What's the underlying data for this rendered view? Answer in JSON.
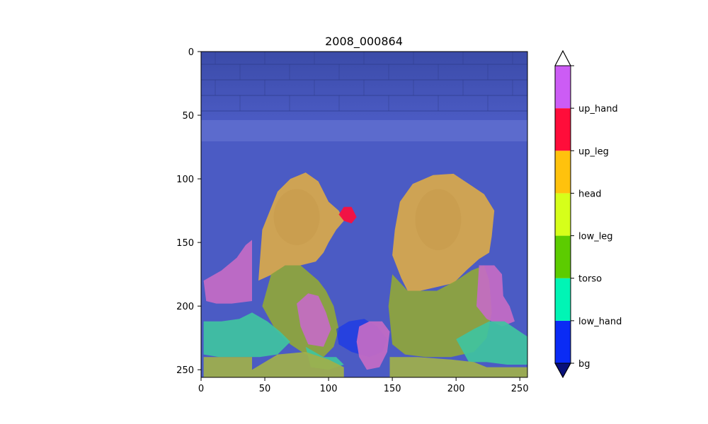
{
  "chart_data": {
    "type": "heatmap",
    "title": "2008_000864",
    "xlabel": "",
    "ylabel": "",
    "xlim": [
      0,
      256
    ],
    "ylim": [
      256,
      0
    ],
    "x_ticks": [
      0,
      50,
      100,
      150,
      200,
      250
    ],
    "y_ticks": [
      0,
      50,
      100,
      150,
      200,
      250
    ],
    "grid": false,
    "colorbar": {
      "labels": [
        "bg",
        "low_hand",
        "torso",
        "low_leg",
        "head",
        "up_leg",
        "up_hand"
      ],
      "colors": [
        "#0a2bf5",
        "#00f5b5",
        "#5ccc00",
        "#d6ff1a",
        "#ffc20d",
        "#ff0d3a",
        "#cc5cf5"
      ],
      "under_color": "#08107a",
      "over_color": "#ffffff",
      "extend": "both"
    },
    "image_colors": {
      "background": "#4b5bc4",
      "wall": "#3b4ba8",
      "tub_rim": "#6472d2",
      "head": "#d9a94a",
      "skin": "#c79a4a",
      "torso": "#8fa63a",
      "low_hand": "#3fc3a0",
      "up_hand": "#c46bc4",
      "tub_front": "#9fb04a"
    },
    "segments": [
      {
        "label": "head",
        "polygon": [
          [
            45,
            180
          ],
          [
            48,
            140
          ],
          [
            60,
            110
          ],
          [
            70,
            100
          ],
          [
            82,
            95
          ],
          [
            92,
            102
          ],
          [
            100,
            118
          ],
          [
            108,
            125
          ],
          [
            112,
            133
          ],
          [
            106,
            140
          ],
          [
            100,
            150
          ],
          [
            96,
            158
          ],
          [
            90,
            165
          ],
          [
            78,
            168
          ],
          [
            66,
            168
          ],
          [
            56,
            175
          ]
        ]
      },
      {
        "label": "head",
        "polygon": [
          [
            152,
            140
          ],
          [
            156,
            118
          ],
          [
            166,
            104
          ],
          [
            182,
            97
          ],
          [
            198,
            96
          ],
          [
            210,
            104
          ],
          [
            222,
            112
          ],
          [
            230,
            125
          ],
          [
            228,
            145
          ],
          [
            226,
            158
          ],
          [
            218,
            163
          ],
          [
            208,
            172
          ],
          [
            198,
            182
          ],
          [
            185,
            185
          ],
          [
            172,
            188
          ],
          [
            162,
            188
          ],
          [
            157,
            178
          ],
          [
            150,
            160
          ]
        ]
      },
      {
        "label": "torso",
        "polygon": [
          [
            55,
            175
          ],
          [
            66,
            168
          ],
          [
            78,
            168
          ],
          [
            92,
            180
          ],
          [
            98,
            188
          ],
          [
            104,
            200
          ],
          [
            108,
            218
          ],
          [
            104,
            232
          ],
          [
            96,
            240
          ],
          [
            82,
            238
          ],
          [
            70,
            230
          ],
          [
            58,
            218
          ],
          [
            48,
            200
          ]
        ]
      },
      {
        "label": "torso",
        "polygon": [
          [
            150,
            175
          ],
          [
            162,
            188
          ],
          [
            185,
            188
          ],
          [
            200,
            180
          ],
          [
            212,
            172
          ],
          [
            222,
            168
          ],
          [
            226,
            180
          ],
          [
            228,
            205
          ],
          [
            224,
            225
          ],
          [
            214,
            236
          ],
          [
            196,
            240
          ],
          [
            176,
            240
          ],
          [
            160,
            238
          ],
          [
            150,
            230
          ],
          [
            147,
            200
          ]
        ]
      },
      {
        "label": "up_hand",
        "polygon": [
          [
            2,
            180
          ],
          [
            16,
            172
          ],
          [
            28,
            162
          ],
          [
            35,
            152
          ],
          [
            40,
            148
          ],
          [
            40,
            196
          ],
          [
            24,
            198
          ],
          [
            12,
            198
          ],
          [
            4,
            196
          ]
        ]
      },
      {
        "label": "up_hand",
        "polygon": [
          [
            218,
            168
          ],
          [
            230,
            168
          ],
          [
            236,
            175
          ],
          [
            237,
            192
          ],
          [
            242,
            200
          ],
          [
            246,
            212
          ],
          [
            236,
            216
          ],
          [
            224,
            210
          ],
          [
            216,
            200
          ]
        ]
      },
      {
        "label": "up_hand",
        "polygon": [
          [
            75,
            198
          ],
          [
            84,
            190
          ],
          [
            92,
            192
          ],
          [
            98,
            205
          ],
          [
            102,
            218
          ],
          [
            96,
            232
          ],
          [
            84,
            230
          ],
          [
            78,
            216
          ]
        ]
      },
      {
        "label": "low_hand",
        "polygon": [
          [
            2,
            212
          ],
          [
            16,
            212
          ],
          [
            30,
            210
          ],
          [
            40,
            205
          ],
          [
            52,
            212
          ],
          [
            62,
            220
          ],
          [
            70,
            228
          ],
          [
            60,
            238
          ],
          [
            46,
            240
          ],
          [
            30,
            240
          ],
          [
            14,
            240
          ],
          [
            2,
            238
          ]
        ]
      },
      {
        "label": "low_hand",
        "polygon": [
          [
            82,
            232
          ],
          [
            96,
            240
          ],
          [
            106,
            240
          ],
          [
            112,
            246
          ],
          [
            100,
            250
          ],
          [
            86,
            248
          ]
        ]
      },
      {
        "label": "low_hand",
        "polygon": [
          [
            200,
            226
          ],
          [
            214,
            218
          ],
          [
            226,
            212
          ],
          [
            238,
            212
          ],
          [
            256,
            224
          ],
          [
            256,
            246
          ],
          [
            240,
            246
          ],
          [
            224,
            244
          ],
          [
            210,
            244
          ]
        ]
      },
      {
        "label": "bg",
        "polygon": [
          [
            106,
            218
          ],
          [
            116,
            212
          ],
          [
            128,
            210
          ],
          [
            138,
            216
          ],
          [
            146,
            226
          ],
          [
            142,
            236
          ],
          [
            132,
            240
          ],
          [
            118,
            236
          ],
          [
            108,
            230
          ]
        ]
      },
      {
        "label": "up_leg",
        "polygon": [
          [
            112,
            133
          ],
          [
            108,
            128
          ],
          [
            112,
            122
          ],
          [
            118,
            122
          ],
          [
            122,
            130
          ],
          [
            118,
            135
          ]
        ]
      },
      {
        "label": "up_hand",
        "polygon": [
          [
            124,
            216
          ],
          [
            132,
            212
          ],
          [
            142,
            212
          ],
          [
            148,
            220
          ],
          [
            146,
            236
          ],
          [
            140,
            248
          ],
          [
            130,
            250
          ],
          [
            124,
            240
          ],
          [
            122,
            228
          ]
        ]
      },
      {
        "label": "low_leg",
        "polygon": [
          [
            40,
            250
          ],
          [
            60,
            238
          ],
          [
            82,
            236
          ],
          [
            100,
            242
          ],
          [
            112,
            248
          ],
          [
            112,
            256
          ],
          [
            40,
            256
          ]
        ]
      },
      {
        "label": "low_leg",
        "polygon": [
          [
            2,
            240
          ],
          [
            40,
            240
          ],
          [
            40,
            256
          ],
          [
            2,
            256
          ]
        ]
      },
      {
        "label": "low_leg",
        "polygon": [
          [
            148,
            240
          ],
          [
            170,
            240
          ],
          [
            196,
            242
          ],
          [
            214,
            244
          ],
          [
            224,
            248
          ],
          [
            256,
            248
          ],
          [
            256,
            256
          ],
          [
            148,
            256
          ]
        ]
      }
    ]
  }
}
